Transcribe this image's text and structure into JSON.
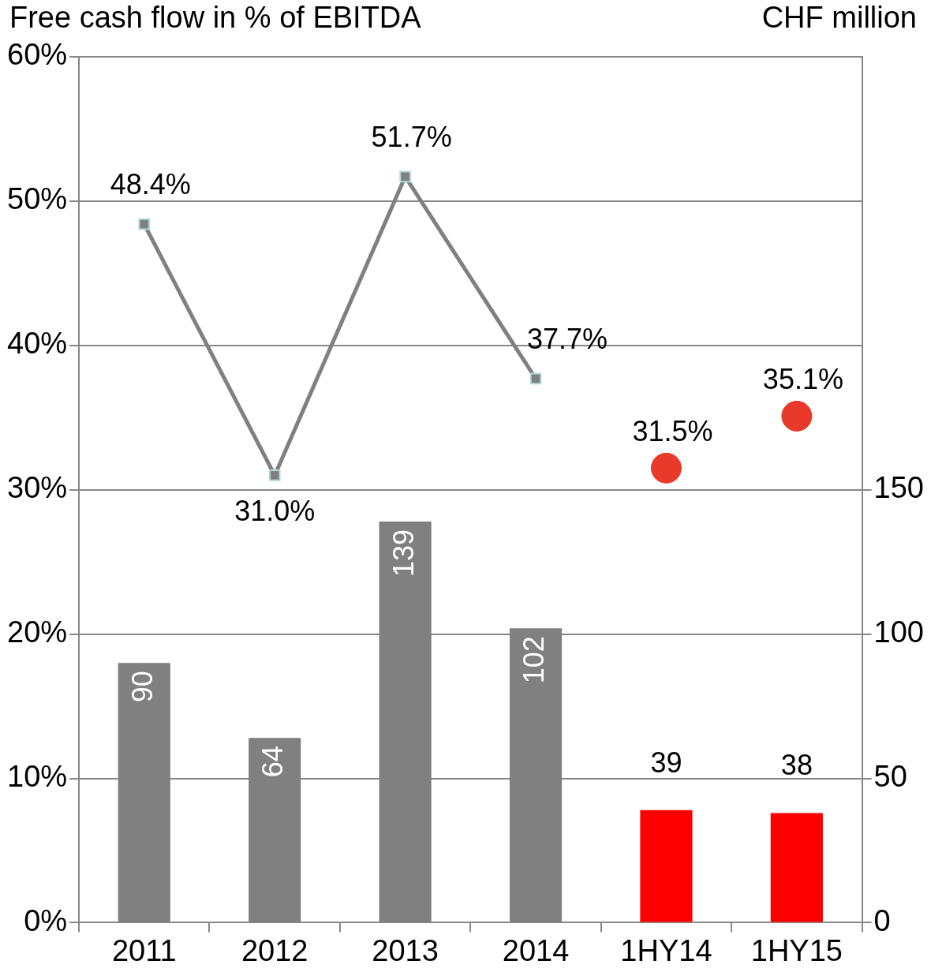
{
  "chart_data": {
    "type": "bar",
    "ylabel": "Free cash flow in % of EBITDA",
    "y2label": "CHF million",
    "categories": [
      "2011",
      "2012",
      "2013",
      "2014",
      "1HY14",
      "1HY15"
    ],
    "series": [
      {
        "axis": "y2",
        "colors": [
          "#808080",
          "#808080",
          "#808080",
          "#808080",
          "#ff0000",
          "#ff0000"
        ],
        "values": [
          90,
          64,
          139,
          102,
          39,
          38
        ],
        "data_labels": true
      },
      {
        "type": "line",
        "axis": "y",
        "color": "#808080",
        "marker": "square",
        "values": [
          48.4,
          31.0,
          51.7,
          37.7,
          null,
          null
        ],
        "value_labels": [
          "48.4%",
          "31.0%",
          "51.7%",
          "37.7%",
          null,
          null
        ]
      },
      {
        "type": "scatter",
        "axis": "y",
        "color": "#e8392a",
        "marker": "circle",
        "x": [
          "1HY14",
          "1HY15"
        ],
        "values": [
          31.5,
          35.1
        ],
        "value_labels": [
          "31.5%",
          "35.1%"
        ]
      }
    ],
    "ylim": [
      0,
      60
    ],
    "yticks": [
      {
        "value": 0,
        "label": "0%"
      },
      {
        "value": 10,
        "label": "10%"
      },
      {
        "value": 20,
        "label": "20%"
      },
      {
        "value": 30,
        "label": "30%"
      },
      {
        "value": 40,
        "label": "40%"
      },
      {
        "value": 50,
        "label": "50%"
      },
      {
        "value": 60,
        "label": "60%"
      }
    ],
    "y2lim": [
      0,
      300
    ],
    "y2ticks": [
      0,
      50,
      100,
      150
    ],
    "grid": "y",
    "legend": false
  }
}
